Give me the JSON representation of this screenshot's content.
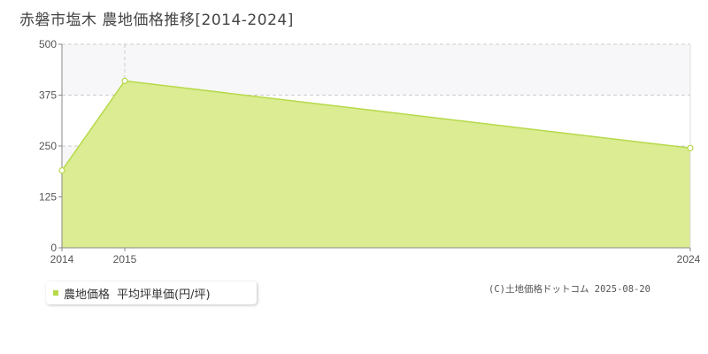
{
  "page": {
    "title": "赤磐市塩木 農地価格推移[2014-2024]",
    "copyright": "(C)土地価格ドットコム 2025-08-20"
  },
  "legend": {
    "name": "農地価格",
    "unit": "平均坪単価(円/坪)"
  },
  "colors": {
    "area_fill": "#dbec92",
    "area_line": "#b6d94a",
    "band": "#f7f7f9",
    "grid": "#cccccc",
    "axis": "#888888",
    "swatch": "#b6d94a"
  },
  "chart_data": {
    "type": "area",
    "x": [
      "2014",
      "2015",
      "2024"
    ],
    "series": [
      {
        "name": "農地価格",
        "values": [
          190,
          410,
          245
        ]
      }
    ],
    "ylim": [
      0,
      500
    ],
    "yticks": [
      0,
      125,
      250,
      375,
      500
    ],
    "grid": true,
    "legend_position": "bottom-left"
  }
}
